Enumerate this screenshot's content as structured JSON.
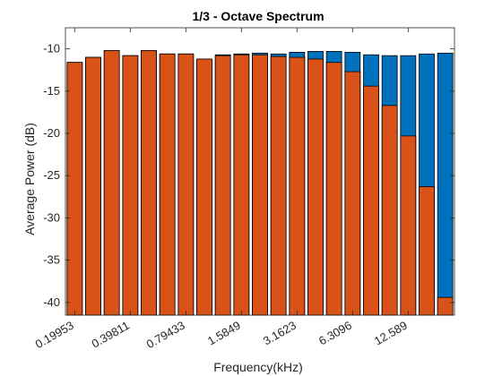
{
  "chart_data": {
    "type": "bar",
    "title": "1/3 - Octave Spectrum",
    "xlabel": "Frequency(kHz)",
    "ylabel": "Average Power (dB)",
    "ylim": [
      -41.5,
      -7.5
    ],
    "y_ticks": [
      -10,
      -15,
      -20,
      -25,
      -30,
      -35,
      -40
    ],
    "x_tick_labels": [
      "0.19953",
      "0.39811",
      "0.79433",
      "1.5849",
      "3.1623",
      "6.3096",
      "12.589"
    ],
    "x_tick_every": 3,
    "grid": false,
    "legend": "none",
    "colors": {
      "back": "#0072BD",
      "front": "#D95319"
    },
    "series": [
      {
        "values": [
          -11.6,
          -11.0,
          -10.2,
          -10.8,
          -10.2,
          -10.6,
          -10.6,
          -11.2,
          -10.7,
          -10.6,
          -10.5,
          -10.6,
          -10.4,
          -10.3,
          -10.3,
          -10.4,
          -10.7,
          -10.8,
          -10.8,
          -10.6,
          -10.5
        ]
      },
      {
        "values": [
          -11.6,
          -11.0,
          -10.2,
          -10.8,
          -10.2,
          -10.6,
          -10.6,
          -11.2,
          -10.8,
          -10.7,
          -10.7,
          -10.9,
          -11.0,
          -11.2,
          -11.6,
          -12.7,
          -14.4,
          -16.7,
          -20.3,
          -26.3,
          -39.4
        ]
      }
    ]
  }
}
